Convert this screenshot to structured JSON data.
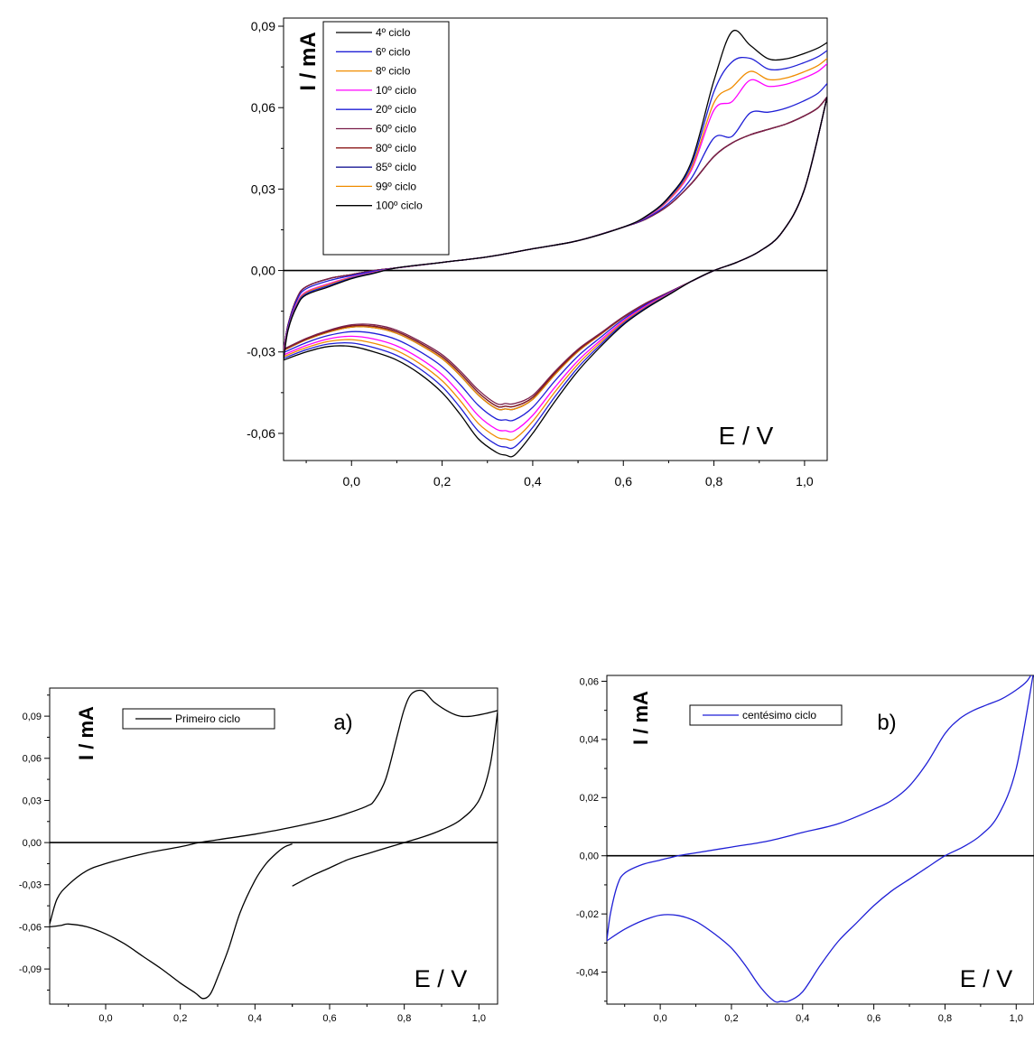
{
  "chart_data": [
    {
      "id": "top",
      "type": "line",
      "title": "",
      "xlabel": "E / V",
      "ylabel": "I / mA",
      "xlim": [
        -0.15,
        1.05
      ],
      "ylim": [
        -0.07,
        0.093
      ],
      "xticks": [
        "0,0",
        "0,2",
        "0,4",
        "0,6",
        "0,8",
        "1,0"
      ],
      "xtick_values": [
        0.0,
        0.2,
        0.4,
        0.6,
        0.8,
        1.0
      ],
      "yticks": [
        "-0,06",
        "-0,03",
        "0,00",
        "0,03",
        "0,06",
        "0,09"
      ],
      "ytick_values": [
        -0.06,
        -0.03,
        0.0,
        0.03,
        0.06,
        0.09
      ],
      "grid": false,
      "legend_position": "top-left",
      "zero_line": true,
      "series": [
        {
          "name": "4º ciclo",
          "color": "#000000",
          "anodic_peak": 0.088,
          "cathodic_peak": -0.068,
          "start": -0.033
        },
        {
          "name": "6º ciclo",
          "color": "#1f1fd6",
          "anodic_peak": 0.082,
          "cathodic_peak": -0.065,
          "start": -0.032
        },
        {
          "name": "8º ciclo",
          "color": "#f08c00",
          "anodic_peak": 0.076,
          "cathodic_peak": -0.062,
          "start": -0.031
        },
        {
          "name": "10º ciclo",
          "color": "#ff00ff",
          "anodic_peak": 0.072,
          "cathodic_peak": -0.059,
          "start": -0.03
        },
        {
          "name": "20º ciclo",
          "color": "#1f1fd6",
          "anodic_peak": 0.057,
          "cathodic_peak": -0.055,
          "start": -0.03
        },
        {
          "name": "60º ciclo",
          "color": "#7a1f4a",
          "anodic_peak": 0.047,
          "cathodic_peak": -0.049,
          "start": -0.03
        },
        {
          "name": "80º ciclo",
          "color": "#8b1a1a",
          "anodic_peak": 0.047,
          "cathodic_peak": -0.05,
          "start": -0.03
        },
        {
          "name": "85º ciclo",
          "color": "#00008b",
          "anodic_peak": 0.047,
          "cathodic_peak": -0.05,
          "start": -0.03
        },
        {
          "name": "99º ciclo",
          "color": "#f08c00",
          "anodic_peak": 0.047,
          "cathodic_peak": -0.051,
          "start": -0.03
        },
        {
          "name": "100º ciclo",
          "color": "#000000",
          "anodic_peak": 0.047,
          "cathodic_peak": -0.051,
          "start": -0.03
        }
      ]
    },
    {
      "id": "a",
      "type": "line",
      "title": "a)",
      "xlabel": "E / V",
      "ylabel": "I / mA",
      "xlim": [
        -0.15,
        1.05
      ],
      "ylim": [
        -0.115,
        0.11
      ],
      "xticks": [
        "0,0",
        "0,2",
        "0,4",
        "0,6",
        "0,8",
        "1,0"
      ],
      "xtick_values": [
        0.0,
        0.2,
        0.4,
        0.6,
        0.8,
        1.0
      ],
      "yticks": [
        "-0,09",
        "-0,06",
        "-0,03",
        "0,00",
        "0,03",
        "0,06",
        "0,09"
      ],
      "ytick_values": [
        -0.09,
        -0.06,
        -0.03,
        0.0,
        0.03,
        0.06,
        0.09
      ],
      "grid": false,
      "legend_position": "top-left",
      "zero_line": true,
      "series": [
        {
          "name": "Primeiro ciclo",
          "color": "#000000",
          "segments": [
            {
              "x": [
                0.5,
                0.55,
                0.6,
                0.65,
                0.7,
                0.75,
                0.8,
                0.85,
                0.9,
                0.95,
                1.0,
                1.03,
                1.05
              ],
              "y": [
                -0.031,
                -0.024,
                -0.018,
                -0.012,
                -0.008,
                -0.004,
                0.0,
                0.004,
                0.009,
                0.016,
                0.03,
                0.055,
                0.093
              ]
            },
            {
              "x": [
                1.05,
                1.02,
                0.98,
                0.95,
                0.92,
                0.88,
                0.85,
                0.82,
                0.8,
                0.78,
                0.75,
                0.72,
                0.7,
                0.65,
                0.6,
                0.5,
                0.4,
                0.3,
                0.25,
                0.2,
                0.1,
                0.0,
                -0.05,
                -0.1,
                -0.13,
                -0.15
              ],
              "y": [
                0.094,
                0.092,
                0.09,
                0.09,
                0.093,
                0.1,
                0.108,
                0.106,
                0.095,
                0.075,
                0.045,
                0.03,
                0.026,
                0.021,
                0.017,
                0.011,
                0.006,
                0.002,
                0.0,
                -0.003,
                -0.008,
                -0.015,
                -0.02,
                -0.03,
                -0.04,
                -0.058
              ]
            },
            {
              "x": [
                -0.15,
                -0.12,
                -0.1,
                -0.05,
                0.0,
                0.05,
                0.1,
                0.15,
                0.2,
                0.24,
                0.26,
                0.28,
                0.3,
                0.33,
                0.36,
                0.4,
                0.43,
                0.46,
                0.48,
                0.5
              ],
              "y": [
                -0.06,
                -0.059,
                -0.058,
                -0.06,
                -0.065,
                -0.072,
                -0.081,
                -0.09,
                -0.1,
                -0.107,
                -0.111,
                -0.108,
                -0.096,
                -0.075,
                -0.05,
                -0.027,
                -0.015,
                -0.007,
                -0.003,
                -0.001
              ]
            }
          ]
        }
      ]
    },
    {
      "id": "b",
      "type": "line",
      "title": "b)",
      "xlabel": "E / V",
      "ylabel": "I / mA",
      "xlim": [
        -0.15,
        1.05
      ],
      "ylim": [
        -0.051,
        0.062
      ],
      "xticks": [
        "0,0",
        "0,2",
        "0,4",
        "0,6",
        "0,8",
        "1,0"
      ],
      "xtick_values": [
        0.0,
        0.2,
        0.4,
        0.6,
        0.8,
        1.0
      ],
      "yticks": [
        "-0,04",
        "-0,02",
        "0,00",
        "0,02",
        "0,04",
        "0,06"
      ],
      "ytick_values": [
        -0.04,
        -0.02,
        0.0,
        0.02,
        0.04,
        0.06
      ],
      "grid": false,
      "legend_position": "top-left",
      "zero_line": true,
      "series": [
        {
          "name": "centésimo ciclo",
          "color": "#1f1fd6",
          "anodic_peak": 0.047,
          "cathodic_peak": -0.05,
          "start": -0.029
        }
      ]
    }
  ]
}
